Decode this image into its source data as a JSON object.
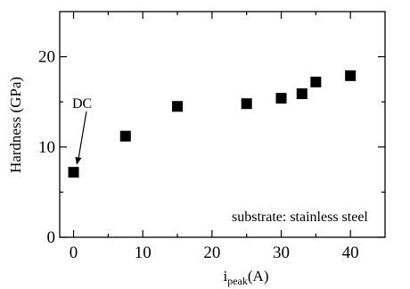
{
  "chart_data": {
    "type": "scatter",
    "title": "",
    "xlabel_main": "i",
    "xlabel_sub": "peak",
    "xlabel_unit": "(A)",
    "ylabel": "Hardness (GPa)",
    "xlim": [
      -2,
      45
    ],
    "ylim": [
      0,
      25
    ],
    "x_ticks": [
      0,
      10,
      20,
      30,
      40
    ],
    "y_ticks": [
      0,
      10,
      20
    ],
    "x_tick_labels": [
      "0",
      "10",
      "20",
      "30",
      "40"
    ],
    "y_tick_labels": [
      "0",
      "10",
      "20"
    ],
    "grid": false,
    "series": [
      {
        "marker": "square",
        "color": "#000000",
        "x": [
          0,
          7.5,
          15,
          25,
          30,
          33,
          35,
          40
        ],
        "y": [
          7.2,
          11.2,
          14.5,
          14.8,
          15.4,
          15.9,
          17.2,
          17.9
        ]
      }
    ],
    "annotations": [
      {
        "text": "DC",
        "x": 0,
        "y": 7.2,
        "arrow": true
      }
    ],
    "note": "substrate: stainless steel"
  }
}
